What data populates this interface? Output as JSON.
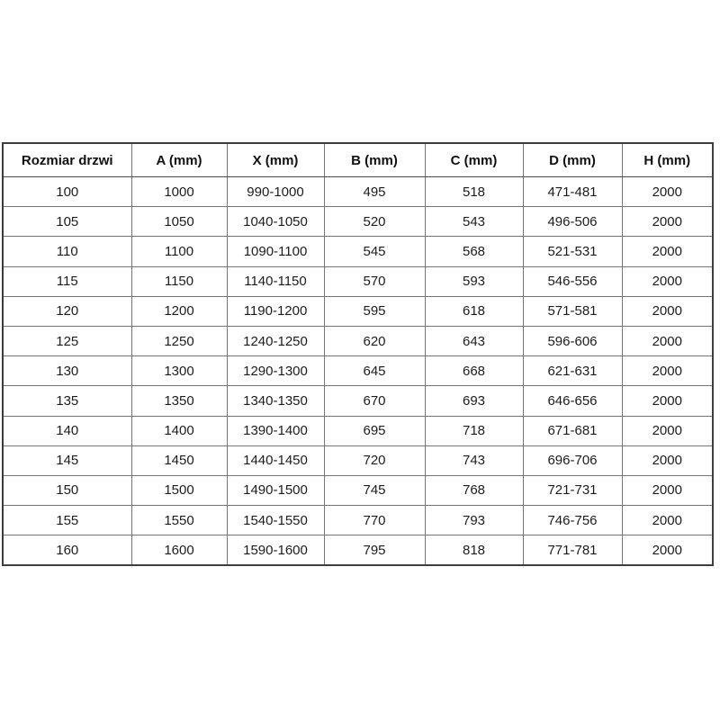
{
  "table": {
    "columns": [
      "Rozmiar drzwi",
      "A (mm)",
      "X (mm)",
      "B (mm)",
      "C (mm)",
      "D (mm)",
      "H (mm)"
    ],
    "rows": [
      [
        "100",
        "1000",
        "990-1000",
        "495",
        "518",
        "471-481",
        "2000"
      ],
      [
        "105",
        "1050",
        "1040-1050",
        "520",
        "543",
        "496-506",
        "2000"
      ],
      [
        "110",
        "1100",
        "1090-1100",
        "545",
        "568",
        "521-531",
        "2000"
      ],
      [
        "115",
        "1150",
        "1140-1150",
        "570",
        "593",
        "546-556",
        "2000"
      ],
      [
        "120",
        "1200",
        "1190-1200",
        "595",
        "618",
        "571-581",
        "2000"
      ],
      [
        "125",
        "1250",
        "1240-1250",
        "620",
        "643",
        "596-606",
        "2000"
      ],
      [
        "130",
        "1300",
        "1290-1300",
        "645",
        "668",
        "621-631",
        "2000"
      ],
      [
        "135",
        "1350",
        "1340-1350",
        "670",
        "693",
        "646-656",
        "2000"
      ],
      [
        "140",
        "1400",
        "1390-1400",
        "695",
        "718",
        "671-681",
        "2000"
      ],
      [
        "145",
        "1450",
        "1440-1450",
        "720",
        "743",
        "696-706",
        "2000"
      ],
      [
        "150",
        "1500",
        "1490-1500",
        "745",
        "768",
        "721-731",
        "2000"
      ],
      [
        "155",
        "1550",
        "1540-1550",
        "770",
        "793",
        "746-756",
        "2000"
      ],
      [
        "160",
        "1600",
        "1590-1600",
        "795",
        "818",
        "771-781",
        "2000"
      ]
    ],
    "border_color": "#757575",
    "outer_border_color": "#3d3d3d",
    "text_color": "#1c1c1c"
  },
  "chart_data": {
    "type": "table",
    "title": "",
    "columns": [
      "Rozmiar drzwi",
      "A (mm)",
      "X (mm)",
      "B (mm)",
      "C (mm)",
      "D (mm)",
      "H (mm)"
    ],
    "rows": [
      [
        "100",
        "1000",
        "990-1000",
        "495",
        "518",
        "471-481",
        "2000"
      ],
      [
        "105",
        "1050",
        "1040-1050",
        "520",
        "543",
        "496-506",
        "2000"
      ],
      [
        "110",
        "1100",
        "1090-1100",
        "545",
        "568",
        "521-531",
        "2000"
      ],
      [
        "115",
        "1150",
        "1140-1150",
        "570",
        "593",
        "546-556",
        "2000"
      ],
      [
        "120",
        "1200",
        "1190-1200",
        "595",
        "618",
        "571-581",
        "2000"
      ],
      [
        "125",
        "1250",
        "1240-1250",
        "620",
        "643",
        "596-606",
        "2000"
      ],
      [
        "130",
        "1300",
        "1290-1300",
        "645",
        "668",
        "621-631",
        "2000"
      ],
      [
        "135",
        "1350",
        "1340-1350",
        "670",
        "693",
        "646-656",
        "2000"
      ],
      [
        "140",
        "1400",
        "1390-1400",
        "695",
        "718",
        "671-681",
        "2000"
      ],
      [
        "145",
        "1450",
        "1440-1450",
        "720",
        "743",
        "696-706",
        "2000"
      ],
      [
        "150",
        "1500",
        "1490-1500",
        "745",
        "768",
        "721-731",
        "2000"
      ],
      [
        "155",
        "1550",
        "1540-1550",
        "770",
        "793",
        "746-756",
        "2000"
      ],
      [
        "160",
        "1600",
        "1590-1600",
        "795",
        "818",
        "771-781",
        "2000"
      ]
    ]
  }
}
